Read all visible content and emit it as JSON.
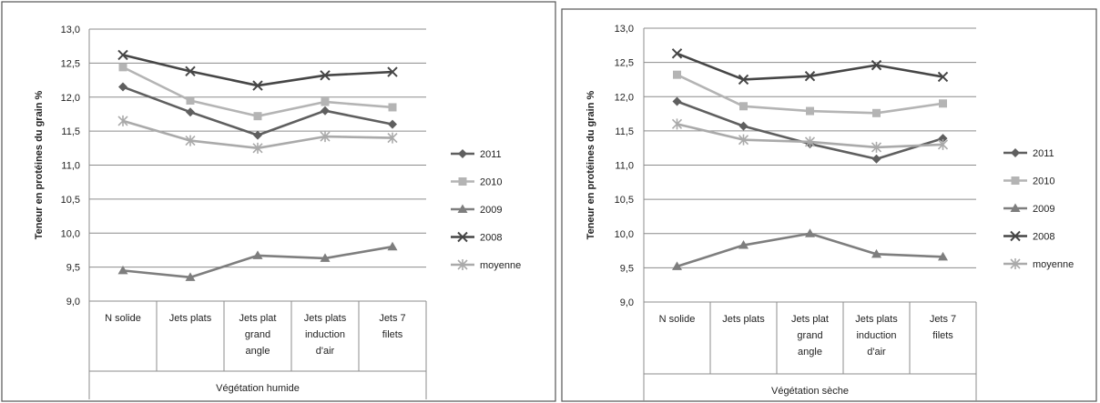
{
  "chart_data": [
    {
      "type": "line",
      "ylabel": "Teneur en protéines du grain %",
      "ylim": [
        9.0,
        13.0
      ],
      "y_ticks": [
        "9,0",
        "9,5",
        "10,0",
        "10,5",
        "11,0",
        "11,5",
        "12,0",
        "12,5",
        "13,0"
      ],
      "categories": [
        "N solide",
        "Jets plats",
        "Jets plat grand angle",
        "Jets plats induction d'air",
        "Jets 7 filets"
      ],
      "category_lines": [
        [
          "N solide"
        ],
        [
          "Jets plats"
        ],
        [
          "Jets plat",
          "grand",
          "angle"
        ],
        [
          "Jets plats",
          "induction",
          "d'air"
        ],
        [
          "Jets 7",
          "filets"
        ]
      ],
      "group_label": "Végétation humide",
      "grid": true,
      "legend_position": "right",
      "series": [
        {
          "name": "2011",
          "values": [
            12.15,
            11.78,
            11.44,
            11.8,
            11.6
          ],
          "color": "#5f5f5f",
          "marker": "diamond"
        },
        {
          "name": "2010",
          "values": [
            12.44,
            11.95,
            11.72,
            11.93,
            11.85
          ],
          "color": "#b4b4b4",
          "marker": "square"
        },
        {
          "name": "2009",
          "values": [
            9.45,
            9.35,
            9.67,
            9.63,
            9.8
          ],
          "color": "#7e7e7e",
          "marker": "triangle"
        },
        {
          "name": "2008",
          "values": [
            12.62,
            12.38,
            12.17,
            12.32,
            12.37
          ],
          "color": "#464646",
          "marker": "x"
        },
        {
          "name": "moyenne",
          "values": [
            11.65,
            11.36,
            11.25,
            11.42,
            11.4
          ],
          "color": "#aaaaaa",
          "marker": "star"
        }
      ]
    },
    {
      "type": "line",
      "ylabel": "Teneur en protéines du grain %",
      "ylim": [
        9.0,
        13.0
      ],
      "y_ticks": [
        "9,0",
        "9,5",
        "10,0",
        "10,5",
        "11,0",
        "11,5",
        "12,0",
        "12,5",
        "13,0"
      ],
      "categories": [
        "N solide",
        "Jets plats",
        "Jets plat grand angle",
        "Jets plats induction d'air",
        "Jets 7 filets"
      ],
      "category_lines": [
        [
          "N solide"
        ],
        [
          "Jets plats"
        ],
        [
          "Jets plat",
          "grand",
          "angle"
        ],
        [
          "Jets plats",
          "induction",
          "d'air"
        ],
        [
          "Jets 7",
          "filets"
        ]
      ],
      "group_label": "Végétation sèche",
      "grid": true,
      "legend_position": "right",
      "series": [
        {
          "name": "2011",
          "values": [
            11.93,
            11.57,
            11.31,
            11.09,
            11.39
          ],
          "color": "#5f5f5f",
          "marker": "diamond"
        },
        {
          "name": "2010",
          "values": [
            12.32,
            11.86,
            11.79,
            11.76,
            11.9
          ],
          "color": "#b4b4b4",
          "marker": "square"
        },
        {
          "name": "2009",
          "values": [
            9.52,
            9.83,
            10.0,
            9.7,
            9.66
          ],
          "color": "#7e7e7e",
          "marker": "triangle"
        },
        {
          "name": "2008",
          "values": [
            12.63,
            12.25,
            12.3,
            12.46,
            12.29
          ],
          "color": "#464646",
          "marker": "x"
        },
        {
          "name": "moyenne",
          "values": [
            11.6,
            11.37,
            11.34,
            11.26,
            11.3
          ],
          "color": "#aaaaaa",
          "marker": "star"
        }
      ]
    }
  ]
}
